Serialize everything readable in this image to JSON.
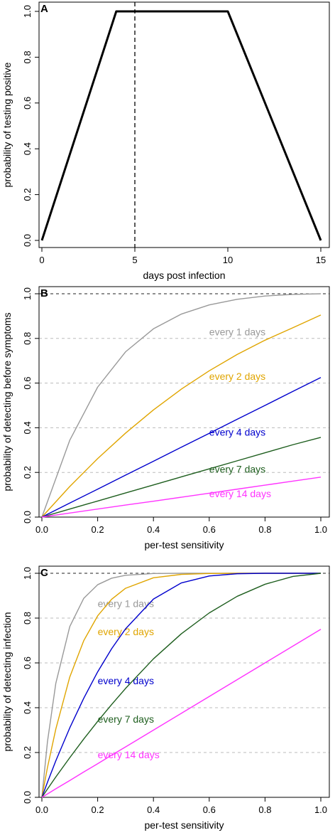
{
  "chart_data": [
    {
      "panel_label": "A",
      "type": "line",
      "xlabel": "days post infection",
      "ylabel": "probability of testing positive",
      "xlim": [
        0,
        15
      ],
      "ylim": [
        0,
        1
      ],
      "xticks": [
        0,
        5,
        10,
        15
      ],
      "yticks": [
        0.0,
        0.2,
        0.4,
        0.6,
        0.8,
        1.0
      ],
      "xtick_labels": [
        "0",
        "5",
        "10",
        "15"
      ],
      "ytick_labels": [
        "0.0",
        "0.2",
        "0.4",
        "0.6",
        "0.8",
        "1.0"
      ],
      "grid": false,
      "series": [
        {
          "color": "#000000",
          "x": [
            0,
            4,
            10,
            15
          ],
          "y": [
            0,
            1,
            1,
            0
          ]
        }
      ],
      "vertical_reference_line": {
        "x": 5,
        "style": "dashed",
        "color": "#000000"
      }
    },
    {
      "panel_label": "B",
      "type": "line",
      "xlabel": "per-test sensitivity",
      "ylabel": "probability of detecting before symptoms",
      "xlim": [
        0,
        1
      ],
      "ylim": [
        0,
        1
      ],
      "xticks": [
        0,
        0.2,
        0.4,
        0.6,
        0.8,
        1.0
      ],
      "yticks": [
        0.0,
        0.2,
        0.4,
        0.6,
        0.8,
        1.0
      ],
      "xtick_labels": [
        "0.0",
        "0.2",
        "0.4",
        "0.6",
        "0.8",
        "1.0"
      ],
      "ytick_labels": [
        "0.0",
        "0.2",
        "0.4",
        "0.6",
        "0.8",
        "1.0"
      ],
      "grid": "dashed horizontal",
      "x": [
        0,
        0.1,
        0.2,
        0.3,
        0.4,
        0.5,
        0.6,
        0.7,
        0.8,
        0.9,
        1.0
      ],
      "series": [
        {
          "label": "every 1 days",
          "color": "#999999",
          "label_at": [
            0.6,
            0.83
          ],
          "values": [
            0,
            0.344,
            0.582,
            0.74,
            0.843,
            0.909,
            0.95,
            0.975,
            0.99,
            0.997,
            1.0
          ]
        },
        {
          "label": "every 2 days",
          "color": "#E0A500",
          "label_at": [
            0.6,
            0.63
          ],
          "values": [
            0,
            0.137,
            0.262,
            0.376,
            0.48,
            0.573,
            0.655,
            0.728,
            0.792,
            0.848,
            0.905
          ]
        },
        {
          "label": "every 4 days",
          "color": "#0000CD",
          "label_at": [
            0.6,
            0.38
          ],
          "values": [
            0,
            0.063,
            0.125,
            0.188,
            0.25,
            0.313,
            0.375,
            0.438,
            0.5,
            0.563,
            0.625
          ]
        },
        {
          "label": "every 7 days",
          "color": "#1E5E1E",
          "label_at": [
            0.6,
            0.215
          ],
          "values": [
            0,
            0.036,
            0.072,
            0.108,
            0.144,
            0.18,
            0.216,
            0.252,
            0.288,
            0.324,
            0.357
          ]
        },
        {
          "label": "every 14 days",
          "color": "#FF33FF",
          "label_at": [
            0.6,
            0.105
          ],
          "values": [
            0,
            0.018,
            0.036,
            0.054,
            0.071,
            0.089,
            0.107,
            0.125,
            0.143,
            0.161,
            0.179
          ]
        }
      ]
    },
    {
      "panel_label": "C",
      "type": "line",
      "xlabel": "per-test sensitivity",
      "ylabel": "probability of detecting infection",
      "xlim": [
        0,
        1
      ],
      "ylim": [
        0,
        1
      ],
      "xticks": [
        0,
        0.2,
        0.4,
        0.6,
        0.8,
        1.0
      ],
      "yticks": [
        0.0,
        0.2,
        0.4,
        0.6,
        0.8,
        1.0
      ],
      "xtick_labels": [
        "0.0",
        "0.2",
        "0.4",
        "0.6",
        "0.8",
        "1.0"
      ],
      "ytick_labels": [
        "0.0",
        "0.2",
        "0.4",
        "0.6",
        "0.8",
        "1.0"
      ],
      "grid": "dashed horizontal",
      "x": [
        0,
        0.02,
        0.05,
        0.1,
        0.15,
        0.2,
        0.25,
        0.3,
        0.4,
        0.5,
        0.6,
        0.7,
        0.8,
        0.9,
        1.0
      ],
      "series": [
        {
          "label": "every 1 days",
          "color": "#999999",
          "label_at": [
            0.2,
            0.865
          ],
          "values": [
            0,
            0.248,
            0.509,
            0.762,
            0.888,
            0.949,
            0.978,
            0.991,
            0.999,
            1.0,
            1.0,
            1.0,
            1.0,
            1.0,
            1.0
          ]
        },
        {
          "label": "every 2 days",
          "color": "#E0A500",
          "label_at": [
            0.2,
            0.74
          ],
          "values": [
            0,
            0.133,
            0.305,
            0.537,
            0.699,
            0.81,
            0.884,
            0.933,
            0.98,
            0.995,
            0.999,
            1.0,
            1.0,
            1.0,
            1.0
          ]
        },
        {
          "label": "every 4 days",
          "color": "#0000CD",
          "label_at": [
            0.2,
            0.52
          ],
          "values": [
            0,
            0.067,
            0.163,
            0.31,
            0.442,
            0.56,
            0.663,
            0.752,
            0.885,
            0.957,
            0.988,
            0.998,
            1.0,
            1.0,
            1.0
          ]
        },
        {
          "label": "every 7 days",
          "color": "#1E5E1E",
          "label_at": [
            0.2,
            0.35
          ],
          "values": [
            0,
            0.037,
            0.091,
            0.177,
            0.26,
            0.339,
            0.414,
            0.486,
            0.618,
            0.73,
            0.823,
            0.897,
            0.951,
            0.986,
            1.0
          ]
        },
        {
          "label": "every 14 days",
          "color": "#FF33FF",
          "label_at": [
            0.2,
            0.19
          ],
          "values": [
            0,
            0.015,
            0.038,
            0.075,
            0.113,
            0.15,
            0.188,
            0.225,
            0.3,
            0.375,
            0.45,
            0.525,
            0.6,
            0.675,
            0.75
          ]
        }
      ]
    }
  ]
}
